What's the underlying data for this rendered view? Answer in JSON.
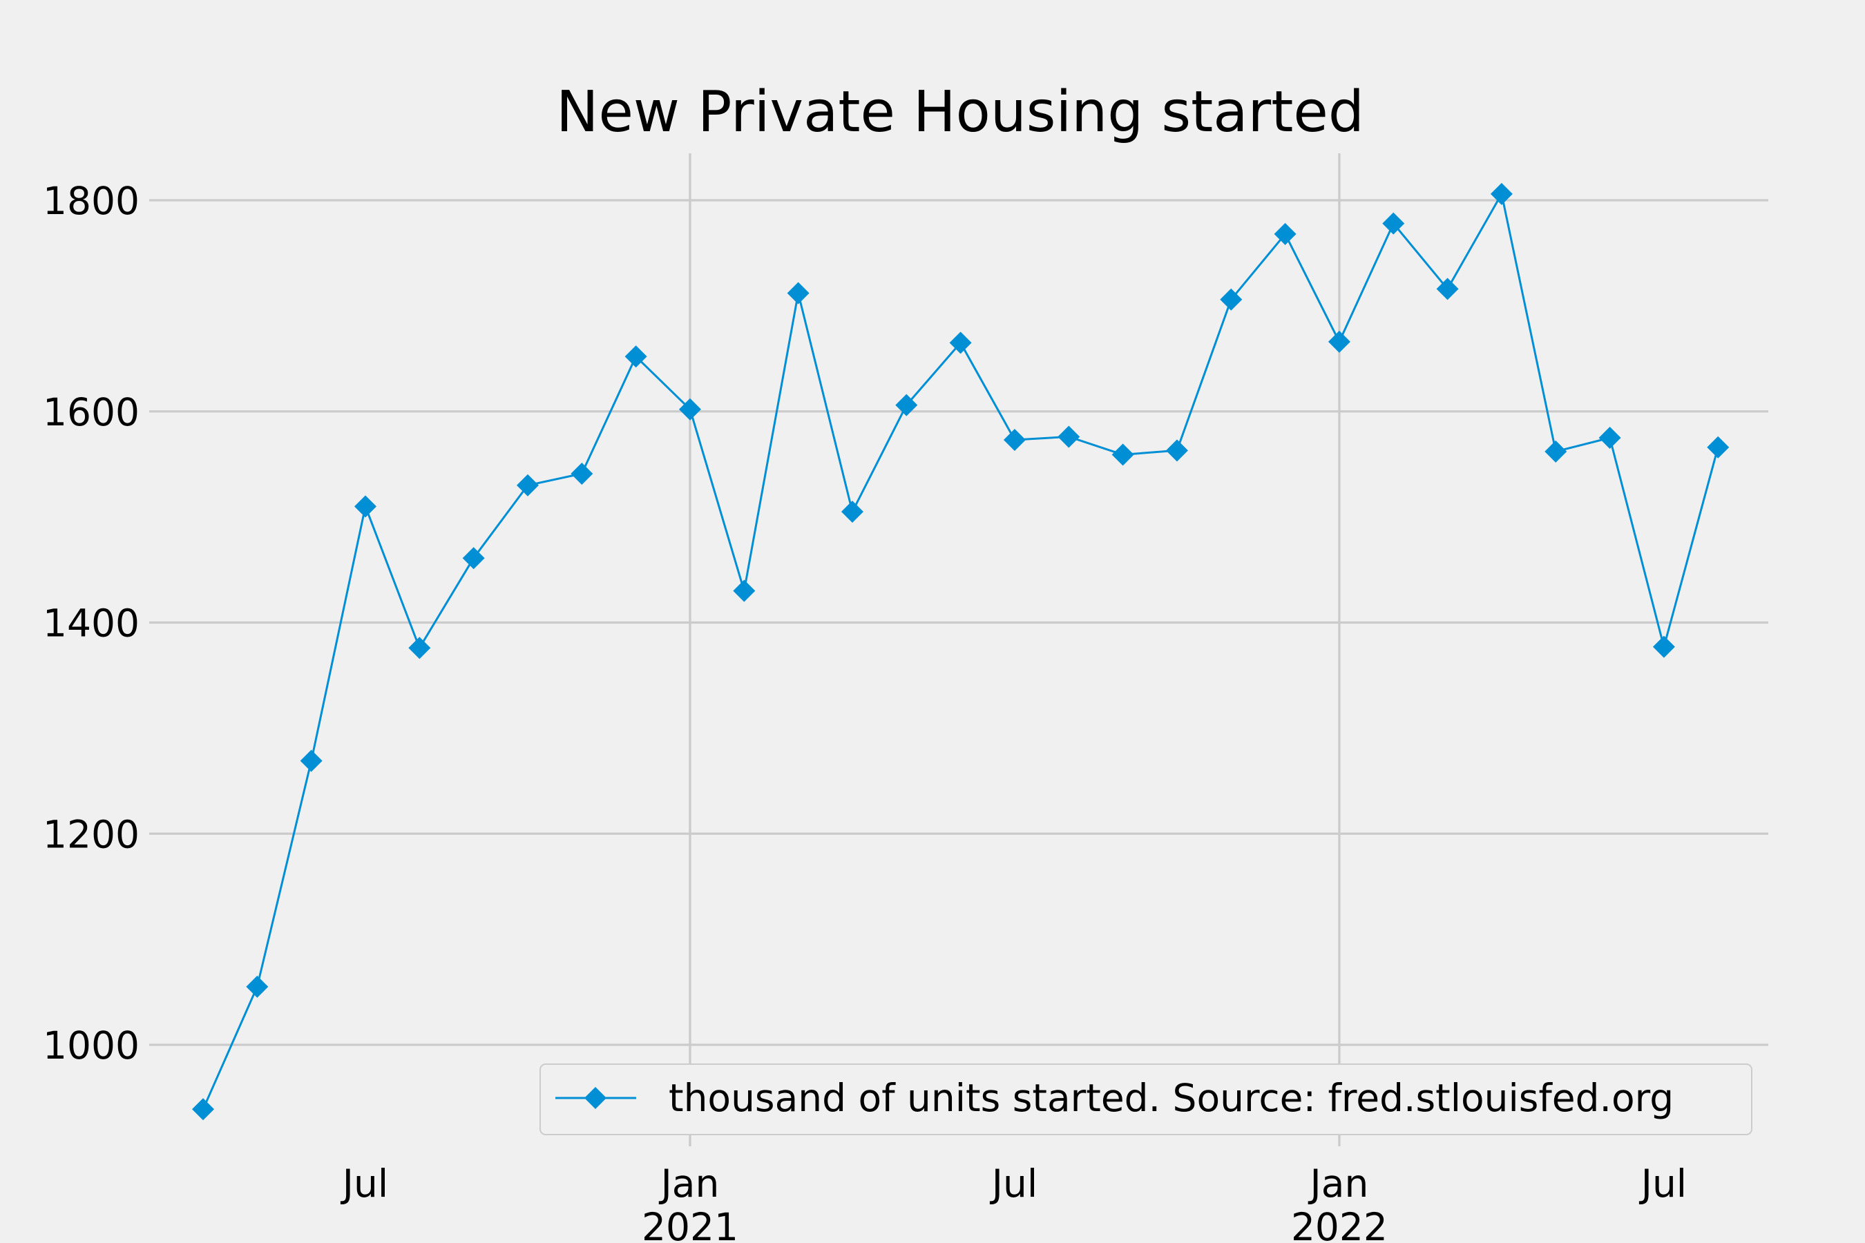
{
  "chart_data": {
    "type": "line",
    "title": "New Private Housing started",
    "xlabel": "",
    "ylabel": "",
    "x": [
      "2020-04",
      "2020-05",
      "2020-06",
      "2020-07",
      "2020-08",
      "2020-09",
      "2020-10",
      "2020-11",
      "2020-12",
      "2021-01",
      "2021-02",
      "2021-03",
      "2021-04",
      "2021-05",
      "2021-06",
      "2021-07",
      "2021-08",
      "2021-09",
      "2021-10",
      "2021-11",
      "2021-12",
      "2022-01",
      "2022-02",
      "2022-03",
      "2022-04",
      "2022-05",
      "2022-06",
      "2022-07",
      "2022-08"
    ],
    "series": [
      {
        "name": "thousand of units started. Source: fred.stlouisfed.org",
        "values": [
          939,
          1055,
          1269,
          1510,
          1376,
          1461,
          1530,
          1541,
          1652,
          1602,
          1430,
          1712,
          1505,
          1606,
          1665,
          1573,
          1576,
          1559,
          1563,
          1706,
          1768,
          1666,
          1778,
          1716,
          1806,
          1562,
          1575,
          1377,
          1566
        ],
        "color": "#008fd5",
        "marker": "diamond"
      }
    ],
    "yticks": [
      "1000",
      "1200",
      "1400",
      "1600",
      "1800"
    ],
    "ylim": [
      930,
      1845
    ],
    "xticks": [
      {
        "date": "2020-07",
        "label": "Jul",
        "sublabel": ""
      },
      {
        "date": "2021-01",
        "label": "Jan",
        "sublabel": "2021"
      },
      {
        "date": "2021-07",
        "label": "Jul",
        "sublabel": ""
      },
      {
        "date": "2022-01",
        "label": "Jan",
        "sublabel": "2022"
      },
      {
        "date": "2022-07",
        "label": "Jul",
        "sublabel": ""
      }
    ],
    "grid": true,
    "legend_position": "bottom-right",
    "background_color": "#f0f0f0",
    "grid_color": "#cbcbcb"
  }
}
